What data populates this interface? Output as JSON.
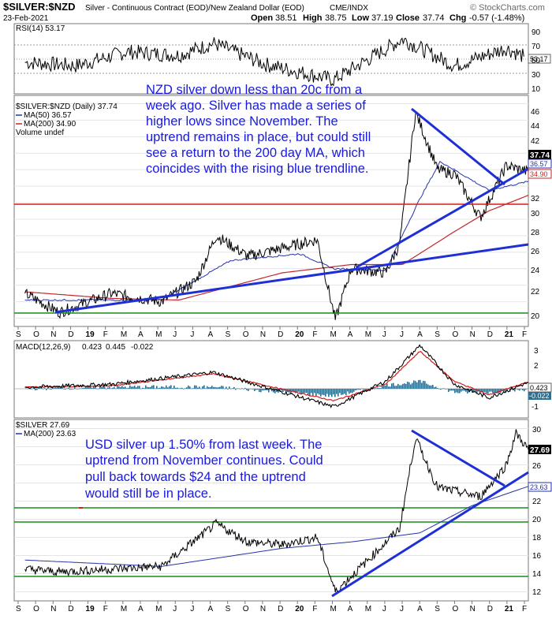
{
  "header": {
    "symbol": "$SILVER:$NZD",
    "description": "Silver - Continuous Contract (EOD)/New Zealand Dollar (EOD)",
    "exchange": "CME/INDX",
    "date": "23-Feb-2021",
    "open_label": "Open",
    "open": "38.51",
    "high_label": "High",
    "high": "38.75",
    "low_label": "Low",
    "low": "37.19",
    "close_label": "Close",
    "close": "37.74",
    "chg_label": "Chg",
    "chg": "-0.57 (-1.48%)",
    "brand": "© StockCharts.com"
  },
  "rsi_panel": {
    "legend": "RSI(14) 53.17",
    "current_tag": "53.17",
    "ticks": [
      "90",
      "70",
      "50",
      "30",
      "10"
    ]
  },
  "nzd_panel": {
    "legend_main": "$SILVER:$NZD (Daily) 37.74",
    "legend_ma50": "MA(50) 36.57",
    "legend_ma200": "MA(200) 34.90",
    "legend_volume": "Volume undef",
    "tag_close": "37.74",
    "tag_ma50": "36.57",
    "tag_ma200": "34.90",
    "ticks": [
      "46",
      "44",
      "42",
      "40",
      "38",
      "36",
      "34",
      "32",
      "30",
      "28",
      "26",
      "24",
      "22",
      "20"
    ],
    "annotation": [
      "NZD silver down less than 20c from a",
      "week ago. Silver has made a series of",
      "higher lows since November. The",
      "uptrend remains in place, but could still",
      "see a return to the 200 day MA, which",
      "coincides with the rising blue trendline."
    ]
  },
  "macd_panel": {
    "legend_prefix": "MACD(12,26,9)",
    "macd": "0.423",
    "signal": "0.445",
    "histogram": "-0.022",
    "tag_macd": "0.423",
    "tag_hist": "-0.022",
    "ticks": [
      "3",
      "2",
      "1",
      "0",
      "-1"
    ]
  },
  "usd_panel": {
    "legend_main": "$SILVER 27.69",
    "legend_ma200": "MA(200) 23.63",
    "tag_close": "27.69",
    "tag_ma200": "23.63",
    "ticks": [
      "30",
      "28",
      "26",
      "24",
      "22",
      "20",
      "18",
      "16",
      "14",
      "12"
    ],
    "annotation": [
      "USD silver up 1.50% from last week. The",
      "uptrend from November continues. Could",
      "pull back towards $24 and the uptrend",
      "would still be in place."
    ]
  },
  "x_axis_labels": [
    "S",
    "O",
    "N",
    "D",
    "19",
    "F",
    "M",
    "A",
    "M",
    "J",
    "J",
    "A",
    "S",
    "O",
    "N",
    "D",
    "20",
    "F",
    "M",
    "A",
    "M",
    "J",
    "J",
    "A",
    "S",
    "O",
    "N",
    "D",
    "21",
    "F"
  ],
  "colors": {
    "trendline": "#1f2fd6",
    "support_red": "#d21f1f",
    "support_green": "#1a8c1a",
    "ma200_red": "#c0282d",
    "ma50_blue": "#2433a8",
    "macd_hist": "#2c6f8f",
    "annotation_text": "#1a1adb"
  },
  "chart_data": [
    {
      "type": "line",
      "title": "RSI(14) 53.17",
      "ylim": [
        0,
        100
      ],
      "series": [
        {
          "name": "RSI(14)",
          "x": [
            "2018-09",
            "2018-12",
            "2019-03",
            "2019-06",
            "2019-08",
            "2019-11",
            "2020-03",
            "2020-07",
            "2020-10",
            "2021-01",
            "2021-02"
          ],
          "values": [
            45,
            40,
            60,
            55,
            72,
            42,
            20,
            78,
            40,
            65,
            53.17
          ]
        }
      ]
    },
    {
      "type": "line",
      "title": "$SILVER:$NZD (Daily) 37.74",
      "ylim": [
        19,
        47
      ],
      "x_start": "2018-08-27",
      "x_end": "2021-02-23",
      "series": [
        {
          "name": "$SILVER:$NZD (Daily)",
          "x": [
            "2018-09",
            "2018-11-15",
            "2019-02",
            "2019-05",
            "2019-07",
            "2019-08-20",
            "2019-10",
            "2019-12",
            "2020-02",
            "2020-03-18",
            "2020-04",
            "2020-06",
            "2020-07-10",
            "2020-08-07",
            "2020-09",
            "2020-10",
            "2020-11-30",
            "2021-01",
            "2021-02-23"
          ],
          "values": [
            23.0,
            20.7,
            23.0,
            22.0,
            24.5,
            30.0,
            27.5,
            28.5,
            29.5,
            19.8,
            26.0,
            25.5,
            29.0,
            45.0,
            38.0,
            37.5,
            32.2,
            38.5,
            37.74
          ]
        },
        {
          "name": "MA(50)",
          "x": [
            "2018-09",
            "2019-05",
            "2019-09",
            "2020-01",
            "2020-03",
            "2020-06",
            "2020-08",
            "2020-09-20",
            "2020-12",
            "2021-02-23"
          ],
          "values": [
            22.2,
            22.2,
            27.0,
            27.8,
            26.0,
            25.8,
            34.5,
            39.0,
            35.5,
            36.57
          ]
        },
        {
          "name": "MA(200)",
          "x": [
            "2018-09",
            "2019-02",
            "2019-06",
            "2019-12",
            "2020-04",
            "2020-07",
            "2020-10",
            "2020-12",
            "2021-02-23"
          ],
          "values": [
            23.2,
            22.4,
            22.2,
            25.5,
            26.5,
            26.5,
            30.5,
            33.0,
            34.9
          ]
        }
      ],
      "lines": [
        {
          "name": "support-red",
          "y": 31.2
        },
        {
          "name": "support-low",
          "y": 20.3
        },
        {
          "name": "trendline-long",
          "from": [
            "2018-11-15",
            20.5
          ],
          "to": [
            "2021-02-23",
            26.6
          ]
        },
        {
          "name": "trendline-rising",
          "from": [
            "2020-06",
            24.5
          ],
          "to": [
            "2021-02-23",
            35.8
          ]
        },
        {
          "name": "trendline-falling",
          "from": [
            "2020-08-07",
            45.0
          ],
          "to": [
            "2020-12-25",
            34.0
          ]
        }
      ]
    },
    {
      "type": "line",
      "title": "MACD(12,26,9) 0.423, 0.445, -0.022",
      "ylim": [
        -1.5,
        3.5
      ],
      "series": [
        {
          "name": "MACD",
          "x": [
            "2018-09",
            "2019-02",
            "2019-08",
            "2020-03",
            "2020-06",
            "2020-08",
            "2020-10",
            "2020-12",
            "2021-02-23"
          ],
          "values": [
            0.1,
            0.3,
            1.1,
            -1.2,
            0.5,
            2.9,
            0.3,
            -0.6,
            0.423
          ]
        },
        {
          "name": "Signal",
          "x": [
            "2018-09",
            "2019-02",
            "2019-08",
            "2020-03",
            "2020-06",
            "2020-08",
            "2020-10",
            "2020-12",
            "2021-02-23"
          ],
          "values": [
            0.1,
            0.2,
            1.0,
            -0.8,
            0.3,
            2.5,
            0.5,
            -0.4,
            0.445
          ]
        }
      ]
    },
    {
      "type": "line",
      "title": "$SILVER 27.69",
      "ylim": [
        11,
        31
      ],
      "series": [
        {
          "name": "$SILVER",
          "x": [
            "2018-09",
            "2018-11-15",
            "2019-05",
            "2019-08-20",
            "2019-10",
            "2019-12",
            "2020-02",
            "2020-03-18",
            "2020-05",
            "2020-07-10",
            "2020-08-07",
            "2020-09",
            "2020-11-30",
            "2021-01",
            "2021-02-01",
            "2021-02-23"
          ],
          "values": [
            14.5,
            14.2,
            14.8,
            19.5,
            17.5,
            17.2,
            18.0,
            12.0,
            15.5,
            19.0,
            29.0,
            23.5,
            22.5,
            26.0,
            29.5,
            27.69
          ]
        },
        {
          "name": "MA(200)",
          "x": [
            "2018-09",
            "2019-05",
            "2019-12",
            "2020-04",
            "2020-08",
            "2020-11",
            "2021-02-23"
          ],
          "values": [
            15.5,
            14.8,
            16.8,
            17.5,
            18.5,
            21.5,
            23.63
          ]
        }
      ],
      "lines": [
        {
          "name": "support-1",
          "y": 21.3
        },
        {
          "name": "support-2",
          "y": 20.0
        },
        {
          "name": "support-3",
          "y": 14.0
        },
        {
          "name": "trendline-rising",
          "from": [
            "2020-03-18",
            11.8
          ],
          "to": [
            "2021-02-23",
            25.0
          ]
        },
        {
          "name": "trendline-falling",
          "from": [
            "2020-08-07",
            30.0
          ],
          "to": [
            "2021-01-10",
            23.7
          ]
        }
      ]
    }
  ]
}
